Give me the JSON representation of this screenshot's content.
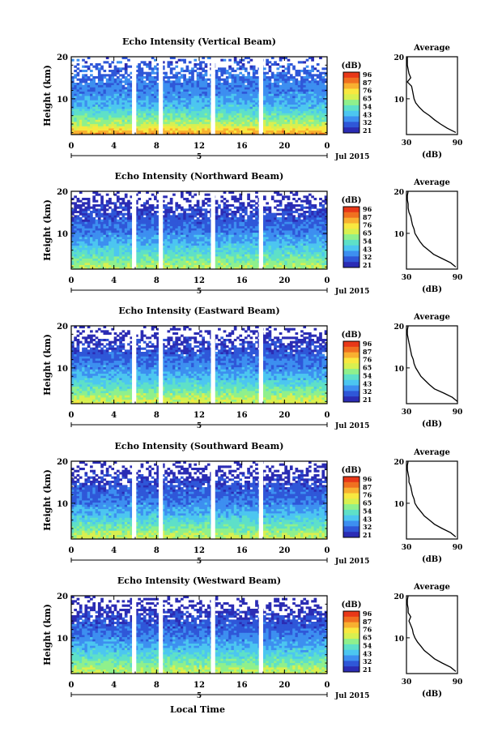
{
  "figure": {
    "xlabel_bottom": "Local Time",
    "date_label": "Jul 2015",
    "day_marker": "5",
    "panel_titles": [
      "Echo Intensity (Vertical Beam)",
      "Echo Intensity (Northward Beam)",
      "Echo Intensity (Eastward Beam)",
      "Echo Intensity (Southward Beam)",
      "Echo Intensity (Westward Beam)"
    ],
    "ylabel": "Height (km)",
    "colorbar_unit": "(dB)",
    "colorbar_ticks": [
      "96",
      "87",
      "76",
      "65",
      "54",
      "43",
      "32",
      "21"
    ],
    "average_title": "Average",
    "average_xlabel": "(dB)"
  },
  "colors": {
    "colormap": [
      "#2b2cb4",
      "#2f57d8",
      "#3d8ff0",
      "#4cc6f0",
      "#5ee0c8",
      "#8ff08c",
      "#d8f050",
      "#f8e840",
      "#f8b030",
      "#f07020",
      "#e83818"
    ],
    "gap": "#ffffff",
    "axis": "#000000"
  },
  "chart_data": [
    {
      "type": "heatmap",
      "title": "Echo Intensity (Vertical Beam)",
      "ylabel": "Height (km)",
      "xlim": [
        0,
        24
      ],
      "ylim": [
        1.5,
        20
      ],
      "x_ticks": [
        "0",
        "4",
        "8",
        "12",
        "16",
        "20",
        "0"
      ],
      "y_ticks": [
        "10",
        "20"
      ],
      "colorbar": {
        "unit": "(dB)",
        "ticks": [
          96,
          87,
          76,
          65,
          54,
          43,
          32,
          21
        ]
      },
      "data_gaps_hours": [
        [
          5.7,
          6.1
        ],
        [
          8.2,
          8.6
        ],
        [
          13.1,
          13.5
        ],
        [
          17.6,
          18.0
        ]
      ],
      "echo_profile_height_km": [
        2,
        4,
        6,
        8,
        10,
        12,
        14,
        16,
        18
      ],
      "echo_profile_db": [
        80,
        62,
        54,
        45,
        40,
        37,
        35,
        33,
        31
      ],
      "average": {
        "title": "Average",
        "xlabel": "(dB)",
        "xlim": [
          30,
          90
        ],
        "x_ticks": [
          "30",
          "90"
        ],
        "y_ticks": [
          "10",
          "20"
        ],
        "profile": [
          [
            2,
            88
          ],
          [
            3,
            78
          ],
          [
            4,
            70
          ],
          [
            5,
            63
          ],
          [
            6,
            57
          ],
          [
            7,
            50
          ],
          [
            8,
            45
          ],
          [
            9,
            41
          ],
          [
            10,
            39
          ],
          [
            11,
            38
          ],
          [
            12,
            37
          ],
          [
            13,
            36
          ],
          [
            14,
            31
          ],
          [
            15,
            35
          ],
          [
            16,
            33
          ],
          [
            17,
            32
          ],
          [
            18,
            31
          ],
          [
            19,
            31
          ],
          [
            20,
            31
          ]
        ]
      }
    },
    {
      "type": "heatmap",
      "title": "Echo Intensity (Northward Beam)",
      "ylabel": "Height (km)",
      "xlim": [
        0,
        24
      ],
      "ylim": [
        1.5,
        20
      ],
      "x_ticks": [
        "0",
        "4",
        "8",
        "12",
        "16",
        "20",
        "0"
      ],
      "y_ticks": [
        "10",
        "20"
      ],
      "colorbar": {
        "unit": "(dB)",
        "ticks": [
          96,
          87,
          76,
          65,
          54,
          43,
          32,
          21
        ]
      },
      "data_gaps_hours": [
        [
          5.7,
          6.1
        ],
        [
          8.2,
          8.6
        ],
        [
          13.1,
          13.5
        ],
        [
          17.6,
          18.0
        ]
      ],
      "echo_profile_height_km": [
        2,
        4,
        6,
        8,
        10,
        12,
        14,
        16,
        18
      ],
      "echo_profile_db": [
        62,
        55,
        48,
        42,
        37,
        33,
        30,
        26,
        22
      ],
      "average": {
        "title": "Average",
        "xlabel": "(dB)",
        "xlim": [
          30,
          90
        ],
        "x_ticks": [
          "30",
          "90"
        ],
        "y_ticks": [
          "10",
          "20"
        ],
        "profile": [
          [
            2,
            88
          ],
          [
            3,
            82
          ],
          [
            4,
            72
          ],
          [
            5,
            62
          ],
          [
            6,
            56
          ],
          [
            7,
            50
          ],
          [
            8,
            46
          ],
          [
            9,
            43
          ],
          [
            10,
            40
          ],
          [
            11,
            39
          ],
          [
            12,
            37
          ],
          [
            13,
            36
          ],
          [
            14,
            35
          ],
          [
            15,
            33
          ],
          [
            16,
            32
          ],
          [
            17,
            32
          ],
          [
            18,
            31
          ],
          [
            19,
            31
          ],
          [
            20,
            32
          ]
        ]
      }
    },
    {
      "type": "heatmap",
      "title": "Echo Intensity (Eastward Beam)",
      "ylabel": "Height (km)",
      "xlim": [
        0,
        24
      ],
      "ylim": [
        1.5,
        20
      ],
      "x_ticks": [
        "0",
        "4",
        "8",
        "12",
        "16",
        "20",
        "0"
      ],
      "y_ticks": [
        "10",
        "20"
      ],
      "colorbar": {
        "unit": "(dB)",
        "ticks": [
          96,
          87,
          76,
          65,
          54,
          43,
          32,
          21
        ]
      },
      "data_gaps_hours": [
        [
          5.7,
          6.1
        ],
        [
          8.2,
          8.6
        ],
        [
          13.1,
          13.5
        ],
        [
          17.6,
          18.0
        ]
      ],
      "echo_profile_height_km": [
        2,
        4,
        6,
        8,
        10,
        12,
        14,
        16,
        18
      ],
      "echo_profile_db": [
        66,
        58,
        50,
        43,
        38,
        34,
        30,
        26,
        22
      ],
      "average": {
        "title": "Average",
        "xlabel": "(dB)",
        "xlim": [
          30,
          90
        ],
        "x_ticks": [
          "30",
          "90"
        ],
        "y_ticks": [
          "10",
          "20"
        ],
        "profile": [
          [
            2,
            90
          ],
          [
            3,
            84
          ],
          [
            4,
            74
          ],
          [
            5,
            63
          ],
          [
            6,
            57
          ],
          [
            7,
            52
          ],
          [
            8,
            47
          ],
          [
            9,
            44
          ],
          [
            10,
            41
          ],
          [
            11,
            39
          ],
          [
            12,
            38
          ],
          [
            13,
            36
          ],
          [
            14,
            35
          ],
          [
            15,
            34
          ],
          [
            16,
            33
          ],
          [
            17,
            32
          ],
          [
            18,
            31
          ],
          [
            19,
            31
          ],
          [
            20,
            32
          ]
        ]
      }
    },
    {
      "type": "heatmap",
      "title": "Echo Intensity (Southward Beam)",
      "ylabel": "Height (km)",
      "xlim": [
        0,
        24
      ],
      "ylim": [
        1.5,
        20
      ],
      "x_ticks": [
        "0",
        "4",
        "8",
        "12",
        "16",
        "20",
        "0"
      ],
      "y_ticks": [
        "10",
        "20"
      ],
      "colorbar": {
        "unit": "(dB)",
        "ticks": [
          96,
          87,
          76,
          65,
          54,
          43,
          32,
          21
        ]
      },
      "data_gaps_hours": [
        [
          5.7,
          6.1
        ],
        [
          8.2,
          8.6
        ],
        [
          13.1,
          13.5
        ],
        [
          17.6,
          18.0
        ]
      ],
      "echo_profile_height_km": [
        2,
        4,
        6,
        8,
        10,
        12,
        14,
        16,
        18
      ],
      "echo_profile_db": [
        64,
        56,
        49,
        42,
        37,
        33,
        30,
        26,
        22
      ],
      "average": {
        "title": "Average",
        "xlabel": "(dB)",
        "xlim": [
          30,
          90
        ],
        "x_ticks": [
          "30",
          "90"
        ],
        "y_ticks": [
          "10",
          "20"
        ],
        "profile": [
          [
            2,
            88
          ],
          [
            3,
            82
          ],
          [
            4,
            72
          ],
          [
            5,
            63
          ],
          [
            6,
            57
          ],
          [
            7,
            51
          ],
          [
            8,
            47
          ],
          [
            9,
            43
          ],
          [
            10,
            40
          ],
          [
            11,
            39
          ],
          [
            12,
            37
          ],
          [
            13,
            36
          ],
          [
            14,
            35
          ],
          [
            15,
            33
          ],
          [
            16,
            33
          ],
          [
            17,
            32
          ],
          [
            18,
            31
          ],
          [
            19,
            31
          ],
          [
            20,
            32
          ]
        ]
      }
    },
    {
      "type": "heatmap",
      "title": "Echo Intensity (Westward Beam)",
      "ylabel": "Height (km)",
      "xlim": [
        0,
        24
      ],
      "ylim": [
        1.5,
        20
      ],
      "x_ticks": [
        "0",
        "4",
        "8",
        "12",
        "16",
        "20",
        "0"
      ],
      "y_ticks": [
        "10",
        "20"
      ],
      "colorbar": {
        "unit": "(dB)",
        "ticks": [
          96,
          87,
          76,
          65,
          54,
          43,
          32,
          21
        ]
      },
      "data_gaps_hours": [
        [
          5.7,
          6.1
        ],
        [
          8.2,
          8.6
        ],
        [
          13.1,
          13.5
        ],
        [
          17.6,
          18.0
        ]
      ],
      "echo_profile_height_km": [
        2,
        4,
        6,
        8,
        10,
        12,
        14,
        16,
        18
      ],
      "echo_profile_db": [
        64,
        56,
        49,
        42,
        37,
        33,
        30,
        26,
        22
      ],
      "average": {
        "title": "Average",
        "xlabel": "(dB)",
        "xlim": [
          30,
          90
        ],
        "x_ticks": [
          "30",
          "90"
        ],
        "y_ticks": [
          "10",
          "20"
        ],
        "profile": [
          [
            2,
            88
          ],
          [
            3,
            82
          ],
          [
            4,
            72
          ],
          [
            5,
            63
          ],
          [
            6,
            57
          ],
          [
            7,
            51
          ],
          [
            8,
            47
          ],
          [
            9,
            43
          ],
          [
            10,
            40
          ],
          [
            11,
            38
          ],
          [
            12,
            37
          ],
          [
            13,
            35
          ],
          [
            14,
            33
          ],
          [
            15,
            35
          ],
          [
            16,
            32
          ],
          [
            17,
            32
          ],
          [
            18,
            31
          ],
          [
            19,
            31
          ],
          [
            20,
            32
          ]
        ]
      }
    }
  ]
}
